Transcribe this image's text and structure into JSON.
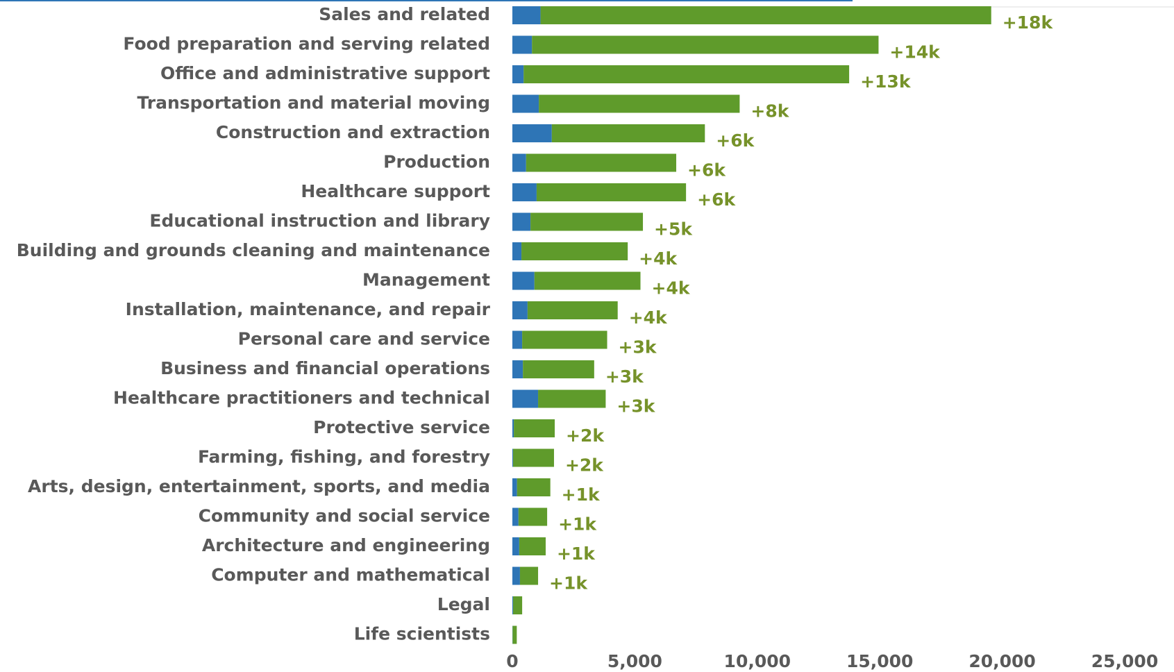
{
  "chart_data": {
    "type": "stacked-barh",
    "categories": [
      "Sales and related",
      "Food preparation and serving related",
      "Office and administrative support",
      "Transportation and material moving",
      "Construction and extraction",
      "Production",
      "Healthcare support",
      "Educational instruction and library",
      "Building and grounds cleaning and maintenance",
      "Management",
      "Installation, maintenance, and repair",
      "Personal care and service",
      "Business and financial operations",
      "Healthcare practitioners and technical",
      "Protective service",
      "Farming, fishing, and forestry",
      "Arts, design, entertainment, sports, and media",
      "Community and social service",
      "Architecture and engineering",
      "Computer and mathematical",
      "Legal",
      "Life scientists"
    ],
    "series": [
      {
        "color": "#2e75b6",
        "values": [
          1150,
          800,
          460,
          1080,
          1610,
          560,
          990,
          740,
          370,
          900,
          620,
          400,
          430,
          1050,
          60,
          30,
          190,
          250,
          280,
          310,
          30,
          10
        ]
      },
      {
        "color": "#5f9b2b",
        "values": [
          18400,
          14150,
          13290,
          8200,
          6250,
          6130,
          6100,
          4590,
          4340,
          4330,
          3680,
          3470,
          2910,
          2760,
          1670,
          1670,
          1360,
          1170,
          1080,
          740,
          370,
          170
        ],
        "value_labels": [
          "+18k",
          "+14k",
          "+13k",
          "+8k",
          "+6k",
          "+6k",
          "+6k",
          "+5k",
          "+4k",
          "+4k",
          "+4k",
          "+3k",
          "+3k",
          "+3k",
          "+2k",
          "+2k",
          "+1k",
          "+1k",
          "+1k",
          "+1k",
          null,
          null
        ]
      }
    ],
    "xlim": [
      0,
      25000
    ],
    "xticks": [
      0,
      {
        "value": 5000,
        "label": "5,000"
      },
      {
        "value": 10000,
        "label": "10,000"
      },
      {
        "value": 15000,
        "label": "15,000"
      },
      {
        "value": 20000,
        "label": "20,000"
      },
      {
        "value": 25000,
        "label": "25,000"
      }
    ]
  }
}
